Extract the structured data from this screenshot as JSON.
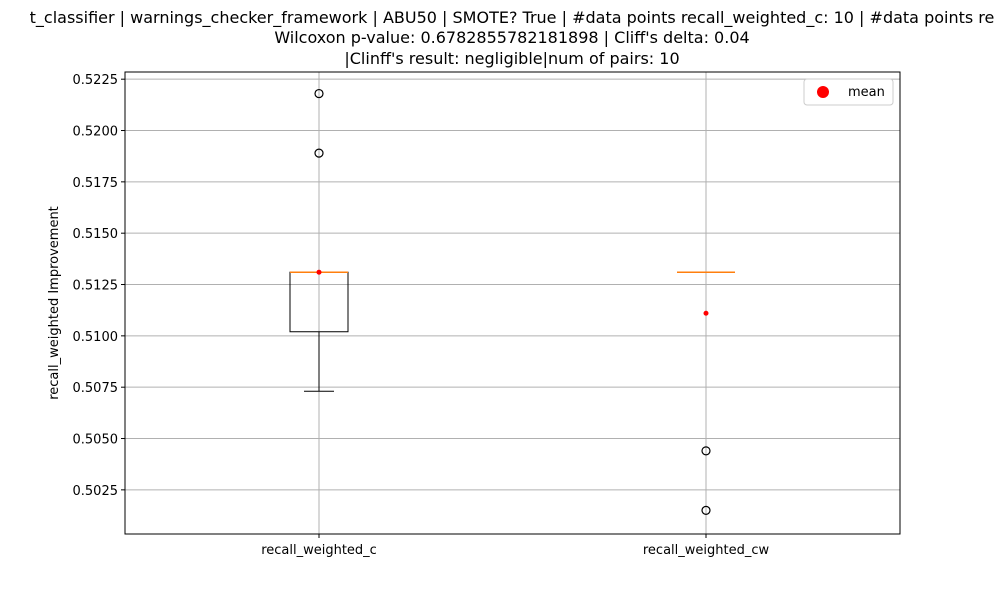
{
  "chart_data": {
    "type": "box",
    "title_lines": [
      "t_classifier | warnings_checker_framework | ABU50 | SMOTE? True | #data points recall_weighted_c: 10 | #data points re",
      "Wilcoxon p-value: 0.6782855782181898 | Cliff's delta: 0.04",
      "|Clinff's result: negligible|num of pairs: 10"
    ],
    "ylabel": "recall_weighted Improvement",
    "xlabel": "",
    "categories": [
      "recall_weighted_c",
      "recall_weighted_cw"
    ],
    "ylim": [
      0.50035,
      0.52285
    ],
    "yticks": [
      0.5025,
      0.505,
      0.5075,
      0.51,
      0.5125,
      0.515,
      0.5175,
      0.52,
      0.5225
    ],
    "ytick_labels": [
      "0.5025",
      "0.5050",
      "0.5075",
      "0.5100",
      "0.5125",
      "0.5150",
      "0.5175",
      "0.5200",
      "0.5225"
    ],
    "grid": true,
    "legend": {
      "placement": "top-right",
      "entries": [
        "mean"
      ]
    },
    "boxes": [
      {
        "name": "recall_weighted_c",
        "whisker_low": 0.5073,
        "q1": 0.5102,
        "median": 0.5131,
        "q3": 0.5131,
        "whisker_high": 0.5131,
        "mean": 0.5131,
        "outliers": [
          0.5189,
          0.5218
        ]
      },
      {
        "name": "recall_weighted_cw",
        "whisker_low": 0.5131,
        "q1": 0.5131,
        "median": 0.5131,
        "q3": 0.5131,
        "whisker_high": 0.5131,
        "mean": 0.5111,
        "outliers": [
          0.5044,
          0.5015
        ]
      }
    ],
    "colors": {
      "box": "#000000",
      "median": "#ff7f0e",
      "mean": "#ff0000",
      "grid": "#b0b0b0",
      "outlier": "#000000"
    }
  }
}
